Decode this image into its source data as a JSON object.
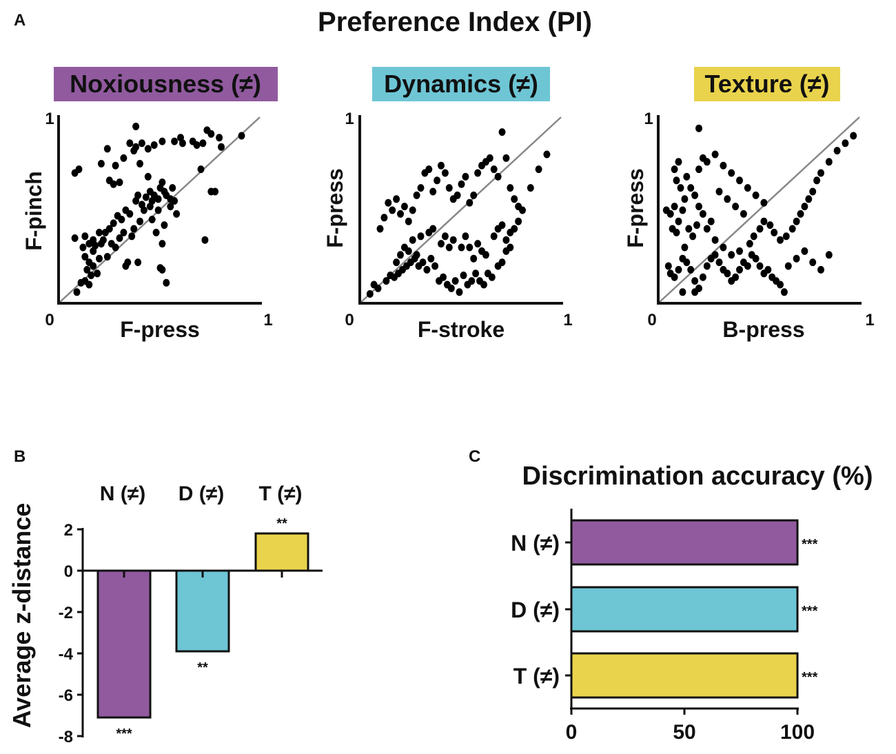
{
  "figure": {
    "panel_a_letter": "A",
    "panel_b_letter": "B",
    "panel_c_letter": "C",
    "title": "Preference Index (PI)"
  },
  "colors": {
    "noxiousness": "#915a9f",
    "dynamics": "#6ec6d5",
    "texture": "#e9d34c",
    "identity": "#888888",
    "points": "#000000"
  },
  "chart_data": [
    {
      "type": "scatter",
      "title": "Noxiousness (≠)",
      "xlabel": "F-press",
      "ylabel": "F-pinch",
      "xlim": [
        0,
        1
      ],
      "ylim": [
        0,
        1
      ],
      "tick_min": "0",
      "tick_max": "1",
      "color_key": "noxiousness",
      "points": [
        [
          0.08,
          0.7
        ],
        [
          0.1,
          0.72
        ],
        [
          0.08,
          0.35
        ],
        [
          0.12,
          0.3
        ],
        [
          0.13,
          0.36
        ],
        [
          0.15,
          0.32
        ],
        [
          0.17,
          0.34
        ],
        [
          0.18,
          0.31
        ],
        [
          0.2,
          0.38
        ],
        [
          0.21,
          0.32
        ],
        [
          0.22,
          0.34
        ],
        [
          0.13,
          0.25
        ],
        [
          0.15,
          0.22
        ],
        [
          0.17,
          0.2
        ],
        [
          0.14,
          0.18
        ],
        [
          0.16,
          0.15
        ],
        [
          0.19,
          0.16
        ],
        [
          0.2,
          0.24
        ],
        [
          0.13,
          0.12
        ],
        [
          0.15,
          0.1
        ],
        [
          0.11,
          0.11
        ],
        [
          0.09,
          0.06
        ],
        [
          0.17,
          0.28
        ],
        [
          0.24,
          0.25
        ],
        [
          0.25,
          0.4
        ],
        [
          0.27,
          0.43
        ],
        [
          0.29,
          0.47
        ],
        [
          0.31,
          0.45
        ],
        [
          0.33,
          0.5
        ],
        [
          0.35,
          0.48
        ],
        [
          0.3,
          0.35
        ],
        [
          0.32,
          0.38
        ],
        [
          0.36,
          0.36
        ],
        [
          0.38,
          0.55
        ],
        [
          0.39,
          0.58
        ],
        [
          0.41,
          0.53
        ],
        [
          0.43,
          0.57
        ],
        [
          0.45,
          0.52
        ],
        [
          0.46,
          0.55
        ],
        [
          0.47,
          0.58
        ],
        [
          0.49,
          0.56
        ],
        [
          0.5,
          0.62
        ],
        [
          0.51,
          0.65
        ],
        [
          0.52,
          0.6
        ],
        [
          0.53,
          0.58
        ],
        [
          0.55,
          0.56
        ],
        [
          0.55,
          0.52
        ],
        [
          0.57,
          0.55
        ],
        [
          0.42,
          0.5
        ],
        [
          0.4,
          0.44
        ],
        [
          0.37,
          0.4
        ],
        [
          0.28,
          0.3
        ],
        [
          0.26,
          0.32
        ],
        [
          0.23,
          0.38
        ],
        [
          0.44,
          0.68
        ],
        [
          0.4,
          0.75
        ],
        [
          0.37,
          0.82
        ],
        [
          0.35,
          0.86
        ],
        [
          0.38,
          0.84
        ],
        [
          0.41,
          0.86
        ],
        [
          0.44,
          0.83
        ],
        [
          0.47,
          0.85
        ],
        [
          0.51,
          0.87
        ],
        [
          0.57,
          0.87
        ],
        [
          0.6,
          0.89
        ],
        [
          0.61,
          0.86
        ],
        [
          0.66,
          0.87
        ],
        [
          0.68,
          0.85
        ],
        [
          0.71,
          0.86
        ],
        [
          0.73,
          0.93
        ],
        [
          0.75,
          0.91
        ],
        [
          0.79,
          0.89
        ],
        [
          0.8,
          0.84
        ],
        [
          0.9,
          0.9
        ],
        [
          0.7,
          0.72
        ],
        [
          0.75,
          0.6
        ],
        [
          0.77,
          0.6
        ],
        [
          0.3,
          0.65
        ],
        [
          0.27,
          0.64
        ],
        [
          0.25,
          0.66
        ],
        [
          0.21,
          0.75
        ],
        [
          0.28,
          0.74
        ],
        [
          0.24,
          0.83
        ],
        [
          0.38,
          0.95
        ],
        [
          0.32,
          0.78
        ],
        [
          0.51,
          0.32
        ],
        [
          0.5,
          0.19
        ],
        [
          0.51,
          0.18
        ],
        [
          0.53,
          0.11
        ],
        [
          0.72,
          0.34
        ],
        [
          0.39,
          0.22
        ],
        [
          0.33,
          0.2
        ],
        [
          0.34,
          0.22
        ],
        [
          0.49,
          0.5
        ],
        [
          0.48,
          0.38
        ],
        [
          0.52,
          0.42
        ],
        [
          0.46,
          0.45
        ],
        [
          0.58,
          0.48
        ],
        [
          0.56,
          0.62
        ],
        [
          0.45,
          0.6
        ]
      ]
    },
    {
      "type": "scatter",
      "title": "Dynamics (≠)",
      "xlabel": "F-stroke",
      "ylabel": "F-press",
      "xlim": [
        0,
        1
      ],
      "ylim": [
        0,
        1
      ],
      "tick_min": "0",
      "tick_max": "1",
      "color_key": "dynamics",
      "points": [
        [
          0.05,
          0.05
        ],
        [
          0.07,
          0.1
        ],
        [
          0.09,
          0.08
        ],
        [
          0.13,
          0.12
        ],
        [
          0.15,
          0.15
        ],
        [
          0.17,
          0.14
        ],
        [
          0.19,
          0.16
        ],
        [
          0.21,
          0.18
        ],
        [
          0.23,
          0.2
        ],
        [
          0.25,
          0.22
        ],
        [
          0.27,
          0.24
        ],
        [
          0.29,
          0.2
        ],
        [
          0.31,
          0.22
        ],
        [
          0.33,
          0.18
        ],
        [
          0.35,
          0.24
        ],
        [
          0.37,
          0.2
        ],
        [
          0.39,
          0.12
        ],
        [
          0.41,
          0.14
        ],
        [
          0.43,
          0.1
        ],
        [
          0.45,
          0.08
        ],
        [
          0.47,
          0.12
        ],
        [
          0.49,
          0.06
        ],
        [
          0.51,
          0.15
        ],
        [
          0.53,
          0.1
        ],
        [
          0.55,
          0.12
        ],
        [
          0.57,
          0.16
        ],
        [
          0.59,
          0.12
        ],
        [
          0.61,
          0.1
        ],
        [
          0.63,
          0.16
        ],
        [
          0.65,
          0.14
        ],
        [
          0.68,
          0.2
        ],
        [
          0.7,
          0.22
        ],
        [
          0.72,
          0.28
        ],
        [
          0.74,
          0.3
        ],
        [
          0.76,
          0.4
        ],
        [
          0.78,
          0.44
        ],
        [
          0.8,
          0.5
        ],
        [
          0.84,
          0.62
        ],
        [
          0.88,
          0.72
        ],
        [
          0.92,
          0.8
        ],
        [
          0.1,
          0.4
        ],
        [
          0.12,
          0.46
        ],
        [
          0.14,
          0.54
        ],
        [
          0.16,
          0.5
        ],
        [
          0.18,
          0.56
        ],
        [
          0.2,
          0.48
        ],
        [
          0.22,
          0.52
        ],
        [
          0.24,
          0.44
        ],
        [
          0.26,
          0.5
        ],
        [
          0.28,
          0.58
        ],
        [
          0.3,
          0.62
        ],
        [
          0.32,
          0.7
        ],
        [
          0.34,
          0.72
        ],
        [
          0.36,
          0.6
        ],
        [
          0.38,
          0.66
        ],
        [
          0.4,
          0.74
        ],
        [
          0.42,
          0.7
        ],
        [
          0.44,
          0.62
        ],
        [
          0.46,
          0.56
        ],
        [
          0.48,
          0.58
        ],
        [
          0.5,
          0.64
        ],
        [
          0.52,
          0.68
        ],
        [
          0.54,
          0.54
        ],
        [
          0.56,
          0.58
        ],
        [
          0.58,
          0.7
        ],
        [
          0.6,
          0.74
        ],
        [
          0.62,
          0.76
        ],
        [
          0.64,
          0.78
        ],
        [
          0.66,
          0.72
        ],
        [
          0.68,
          0.68
        ],
        [
          0.7,
          0.92
        ],
        [
          0.72,
          0.78
        ],
        [
          0.74,
          0.62
        ],
        [
          0.76,
          0.56
        ],
        [
          0.78,
          0.52
        ],
        [
          0.66,
          0.36
        ],
        [
          0.68,
          0.4
        ],
        [
          0.7,
          0.42
        ],
        [
          0.72,
          0.34
        ],
        [
          0.74,
          0.38
        ],
        [
          0.62,
          0.26
        ],
        [
          0.6,
          0.28
        ],
        [
          0.58,
          0.32
        ],
        [
          0.56,
          0.24
        ],
        [
          0.54,
          0.3
        ],
        [
          0.52,
          0.36
        ],
        [
          0.5,
          0.3
        ],
        [
          0.46,
          0.34
        ],
        [
          0.44,
          0.3
        ],
        [
          0.42,
          0.36
        ],
        [
          0.4,
          0.32
        ],
        [
          0.36,
          0.4
        ],
        [
          0.34,
          0.38
        ],
        [
          0.3,
          0.36
        ],
        [
          0.26,
          0.34
        ],
        [
          0.22,
          0.3
        ],
        [
          0.2,
          0.26
        ],
        [
          0.18,
          0.22
        ],
        [
          0.24,
          0.28
        ],
        [
          0.28,
          0.26
        ]
      ]
    },
    {
      "type": "scatter",
      "title": "Texture (≠)",
      "xlabel": "B-press",
      "ylabel": "F-press",
      "xlim": [
        0,
        1
      ],
      "ylim": [
        0,
        1
      ],
      "tick_min": "0",
      "tick_max": "1",
      "color_key": "texture",
      "points": [
        [
          0.04,
          0.5
        ],
        [
          0.06,
          0.48
        ],
        [
          0.08,
          0.52
        ],
        [
          0.07,
          0.4
        ],
        [
          0.09,
          0.38
        ],
        [
          0.1,
          0.44
        ],
        [
          0.12,
          0.5
        ],
        [
          0.13,
          0.56
        ],
        [
          0.11,
          0.62
        ],
        [
          0.09,
          0.66
        ],
        [
          0.08,
          0.72
        ],
        [
          0.1,
          0.76
        ],
        [
          0.14,
          0.68
        ],
        [
          0.16,
          0.62
        ],
        [
          0.18,
          0.58
        ],
        [
          0.2,
          0.52
        ],
        [
          0.22,
          0.48
        ],
        [
          0.19,
          0.42
        ],
        [
          0.17,
          0.36
        ],
        [
          0.15,
          0.4
        ],
        [
          0.13,
          0.3
        ],
        [
          0.12,
          0.24
        ],
        [
          0.14,
          0.22
        ],
        [
          0.1,
          0.18
        ],
        [
          0.08,
          0.14
        ],
        [
          0.06,
          0.16
        ],
        [
          0.05,
          0.2
        ],
        [
          0.16,
          0.18
        ],
        [
          0.18,
          0.12
        ],
        [
          0.2,
          0.08
        ],
        [
          0.22,
          0.14
        ],
        [
          0.24,
          0.2
        ],
        [
          0.26,
          0.24
        ],
        [
          0.28,
          0.26
        ],
        [
          0.3,
          0.22
        ],
        [
          0.32,
          0.18
        ],
        [
          0.34,
          0.16
        ],
        [
          0.36,
          0.12
        ],
        [
          0.38,
          0.14
        ],
        [
          0.4,
          0.18
        ],
        [
          0.42,
          0.22
        ],
        [
          0.44,
          0.2
        ],
        [
          0.46,
          0.26
        ],
        [
          0.48,
          0.24
        ],
        [
          0.5,
          0.2
        ],
        [
          0.52,
          0.16
        ],
        [
          0.54,
          0.18
        ],
        [
          0.56,
          0.14
        ],
        [
          0.58,
          0.12
        ],
        [
          0.6,
          0.1
        ],
        [
          0.45,
          0.32
        ],
        [
          0.47,
          0.36
        ],
        [
          0.5,
          0.4
        ],
        [
          0.52,
          0.44
        ],
        [
          0.55,
          0.42
        ],
        [
          0.57,
          0.38
        ],
        [
          0.6,
          0.34
        ],
        [
          0.63,
          0.36
        ],
        [
          0.66,
          0.4
        ],
        [
          0.68,
          0.44
        ],
        [
          0.7,
          0.48
        ],
        [
          0.72,
          0.52
        ],
        [
          0.74,
          0.56
        ],
        [
          0.76,
          0.6
        ],
        [
          0.78,
          0.66
        ],
        [
          0.8,
          0.7
        ],
        [
          0.84,
          0.76
        ],
        [
          0.88,
          0.82
        ],
        [
          0.92,
          0.86
        ],
        [
          0.96,
          0.9
        ],
        [
          0.2,
          0.72
        ],
        [
          0.22,
          0.78
        ],
        [
          0.24,
          0.76
        ],
        [
          0.28,
          0.8
        ],
        [
          0.32,
          0.74
        ],
        [
          0.36,
          0.7
        ],
        [
          0.4,
          0.66
        ],
        [
          0.44,
          0.62
        ],
        [
          0.48,
          0.58
        ],
        [
          0.52,
          0.54
        ],
        [
          0.3,
          0.6
        ],
        [
          0.34,
          0.56
        ],
        [
          0.38,
          0.52
        ],
        [
          0.42,
          0.48
        ],
        [
          0.26,
          0.44
        ],
        [
          0.24,
          0.4
        ],
        [
          0.28,
          0.34
        ],
        [
          0.32,
          0.3
        ],
        [
          0.36,
          0.26
        ],
        [
          0.4,
          0.28
        ],
        [
          0.64,
          0.2
        ],
        [
          0.68,
          0.24
        ],
        [
          0.72,
          0.28
        ],
        [
          0.76,
          0.22
        ],
        [
          0.8,
          0.18
        ],
        [
          0.84,
          0.26
        ],
        [
          0.62,
          0.06
        ],
        [
          0.18,
          0.06
        ],
        [
          0.12,
          0.06
        ],
        [
          0.2,
          0.94
        ]
      ]
    },
    {
      "type": "bar",
      "orientation": "vertical",
      "title": "",
      "ylabel": "Average z-distance",
      "ylim": [
        -8,
        2
      ],
      "yticks": [
        "2",
        "0",
        "-2",
        "-4",
        "-6",
        "-8"
      ],
      "categories": [
        "N (≠)",
        "D (≠)",
        "T (≠)"
      ],
      "values": [
        -7.1,
        -3.9,
        1.8
      ],
      "significance": [
        "***",
        "**",
        "**"
      ],
      "color_keys": [
        "noxiousness",
        "dynamics",
        "texture"
      ]
    },
    {
      "type": "bar",
      "orientation": "horizontal",
      "title": "Discrimination accuracy (%)",
      "xlim": [
        0,
        100
      ],
      "xticks": [
        "0",
        "50",
        "100"
      ],
      "categories": [
        "N (≠)",
        "D (≠)",
        "T (≠)"
      ],
      "values": [
        100,
        100,
        100
      ],
      "significance": [
        "***",
        "***",
        "***"
      ],
      "color_keys": [
        "noxiousness",
        "dynamics",
        "texture"
      ]
    }
  ]
}
